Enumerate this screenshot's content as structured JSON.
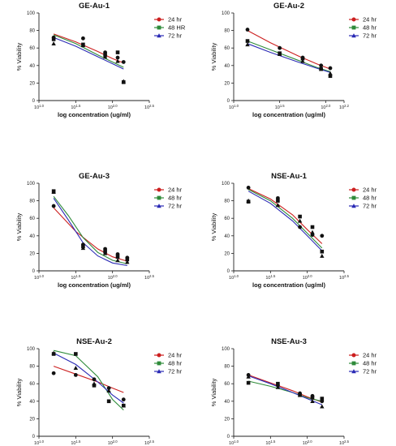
{
  "chart_data": [
    {
      "type": "scatter",
      "title": "GE-Au-1",
      "xlabel": "log concentration (ug/ml)",
      "ylabel": "% Viability",
      "xscale": "log",
      "xlim": [
        1.0,
        2.5
      ],
      "xticks": [
        1.0,
        1.5,
        2.0,
        2.5
      ],
      "xtick_labels": [
        "10^1.0",
        "10^1.5",
        "10^2.0",
        "10^2.5"
      ],
      "ylim": [
        0,
        100
      ],
      "yticks": [
        0,
        20,
        40,
        60,
        80,
        100
      ],
      "legend_position": "top-right",
      "series": [
        {
          "name": "24 hr",
          "color": "#cc1f1f",
          "marker": "circle",
          "x": [
            1.2,
            1.6,
            1.9,
            2.07,
            2.15
          ],
          "y": [
            72,
            71,
            55,
            49,
            44
          ],
          "fit": [
            [
              1.2,
              76
            ],
            [
              1.5,
              67
            ],
            [
              1.8,
              56
            ],
            [
              2.0,
              48
            ],
            [
              2.15,
              43
            ]
          ]
        },
        {
          "name": "48 HR",
          "color": "#2e8b3a",
          "marker": "square",
          "x": [
            1.2,
            1.6,
            1.9,
            2.07,
            2.15
          ],
          "y": [
            70,
            64,
            52,
            55,
            21
          ],
          "fit": [
            [
              1.2,
              75
            ],
            [
              1.5,
              65
            ],
            [
              1.8,
              52
            ],
            [
              2.0,
              44
            ],
            [
              2.15,
              38
            ]
          ]
        },
        {
          "name": "72 hr",
          "color": "#2a2ab5",
          "marker": "triangle",
          "x": [
            1.2,
            1.6,
            1.9,
            2.07,
            2.15
          ],
          "y": [
            65,
            63,
            50,
            45,
            22
          ],
          "fit": [
            [
              1.2,
              72
            ],
            [
              1.5,
              62
            ],
            [
              1.8,
              50
            ],
            [
              2.0,
              42
            ],
            [
              2.15,
              36
            ]
          ]
        }
      ]
    },
    {
      "type": "scatter",
      "title": "GE-Au-2",
      "xlabel": "log concentration (ug/ml)",
      "ylabel": "% Viability",
      "xscale": "log",
      "xlim": [
        1.0,
        2.2
      ],
      "xticks": [
        1.0,
        1.5,
        2.0,
        2.2
      ],
      "xtick_labels": [
        "10^1.0",
        "10^1.5",
        "10^2.0",
        "10^2.2"
      ],
      "ylim": [
        0,
        100
      ],
      "yticks": [
        0,
        20,
        40,
        60,
        80,
        100
      ],
      "legend_position": "top-right",
      "series": [
        {
          "name": "24 hr",
          "color": "#cc1f1f",
          "marker": "circle",
          "x": [
            1.15,
            1.5,
            1.75,
            1.95,
            2.05
          ],
          "y": [
            81,
            60,
            49,
            40,
            37
          ],
          "fit": [
            [
              1.15,
              80
            ],
            [
              1.4,
              66
            ],
            [
              1.7,
              51
            ],
            [
              1.9,
              42
            ],
            [
              2.05,
              36
            ]
          ]
        },
        {
          "name": "48 hr",
          "color": "#2e8b3a",
          "marker": "square",
          "x": [
            1.15,
            1.5,
            1.75,
            1.95,
            2.05
          ],
          "y": [
            68,
            54,
            48,
            36,
            28
          ],
          "fit": [
            [
              1.15,
              68
            ],
            [
              1.4,
              58
            ],
            [
              1.7,
              46
            ],
            [
              1.9,
              38
            ],
            [
              2.05,
              33
            ]
          ]
        },
        {
          "name": "72 hr",
          "color": "#2a2ab5",
          "marker": "triangle",
          "x": [
            1.15,
            1.5,
            1.75,
            1.95,
            2.05
          ],
          "y": [
            64,
            53,
            45,
            36,
            31
          ],
          "fit": [
            [
              1.15,
              65
            ],
            [
              1.4,
              55
            ],
            [
              1.7,
              44
            ],
            [
              1.9,
              37
            ],
            [
              2.05,
              32
            ]
          ]
        }
      ]
    },
    {
      "type": "scatter",
      "title": "GE-Au-3",
      "xlabel": "log concentration (ug/ml)",
      "ylabel": "% Viability",
      "xscale": "log",
      "xlim": [
        1.0,
        2.5
      ],
      "xticks": [
        1.0,
        1.5,
        2.0,
        2.5
      ],
      "xtick_labels": [
        "10^1.0",
        "10^1.5",
        "10^2.0",
        "10^2.5"
      ],
      "ylim": [
        0,
        100
      ],
      "yticks": [
        0,
        20,
        40,
        60,
        80,
        100
      ],
      "legend_position": "top-right",
      "series": [
        {
          "name": "24 hr",
          "color": "#cc1f1f",
          "marker": "circle",
          "x": [
            1.2,
            1.6,
            1.9,
            2.07,
            2.2
          ],
          "y": [
            74,
            30,
            25,
            19,
            15
          ],
          "fit": [
            [
              1.2,
              72
            ],
            [
              1.5,
              45
            ],
            [
              1.8,
              25
            ],
            [
              2.0,
              16
            ],
            [
              2.2,
              11
            ]
          ]
        },
        {
          "name": "48 hr",
          "color": "#2e8b3a",
          "marker": "square",
          "x": [
            1.2,
            1.6,
            1.9,
            2.07,
            2.2
          ],
          "y": [
            91,
            28,
            22,
            16,
            13
          ],
          "fit": [
            [
              1.2,
              85
            ],
            [
              1.4,
              63
            ],
            [
              1.6,
              38
            ],
            [
              1.8,
              21
            ],
            [
              2.0,
              12
            ],
            [
              2.2,
              8
            ]
          ]
        },
        {
          "name": "72 hr",
          "color": "#2a2ab5",
          "marker": "triangle",
          "x": [
            1.2,
            1.6,
            1.9,
            2.07,
            2.2
          ],
          "y": [
            90,
            26,
            20,
            12,
            10
          ],
          "fit": [
            [
              1.2,
              83
            ],
            [
              1.4,
              58
            ],
            [
              1.6,
              32
            ],
            [
              1.8,
              17
            ],
            [
              2.0,
              9
            ],
            [
              2.2,
              6
            ]
          ]
        }
      ]
    },
    {
      "type": "scatter",
      "title": "NSE-Au-1",
      "xlabel": "log concentration (ug/ml)",
      "ylabel": "% Viability",
      "xscale": "log",
      "xlim": [
        1.0,
        2.5
      ],
      "xticks": [
        1.0,
        1.5,
        2.0,
        2.5
      ],
      "xtick_labels": [
        "10^1.0",
        "10^1.5",
        "10^2.0",
        "10^2.5"
      ],
      "ylim": [
        0,
        100
      ],
      "yticks": [
        0,
        20,
        40,
        60,
        80,
        100
      ],
      "legend_position": "top-right",
      "series": [
        {
          "name": "24 hr",
          "color": "#cc1f1f",
          "marker": "circle",
          "x": [
            1.2,
            1.6,
            1.9,
            2.07,
            2.2
          ],
          "y": [
            95,
            83,
            50,
            41,
            40
          ],
          "fit": [
            [
              1.2,
              94
            ],
            [
              1.5,
              82
            ],
            [
              1.8,
              64
            ],
            [
              2.0,
              47
            ],
            [
              2.2,
              31
            ]
          ]
        },
        {
          "name": "48 hr",
          "color": "#2e8b3a",
          "marker": "square",
          "x": [
            1.2,
            1.6,
            1.9,
            2.07,
            2.2
          ],
          "y": [
            79,
            80,
            62,
            50,
            22
          ],
          "fit": [
            [
              1.2,
              93
            ],
            [
              1.5,
              80
            ],
            [
              1.8,
              60
            ],
            [
              2.0,
              43
            ],
            [
              2.2,
              26
            ]
          ]
        },
        {
          "name": "72 hr",
          "color": "#2a2ab5",
          "marker": "triangle",
          "x": [
            1.2,
            1.6,
            1.9,
            2.07,
            2.2
          ],
          "y": [
            80,
            75,
            57,
            44,
            17
          ],
          "fit": [
            [
              1.2,
              91
            ],
            [
              1.5,
              77
            ],
            [
              1.8,
              57
            ],
            [
              2.0,
              40
            ],
            [
              2.2,
              23
            ]
          ]
        }
      ]
    },
    {
      "type": "scatter",
      "title": "NSE-Au-2",
      "xlabel": "log concentration (ug/ml)",
      "ylabel": "% Viability",
      "xscale": "log",
      "xlim": [
        1.0,
        2.5
      ],
      "xticks": [
        1.0,
        1.5,
        2.0,
        2.5
      ],
      "xtick_labels": [
        "10^1.0",
        "10^1.5",
        "10^2.0",
        "10^2.5"
      ],
      "ylim": [
        0,
        100
      ],
      "yticks": [
        0,
        20,
        40,
        60,
        80,
        100
      ],
      "legend_position": "top-right",
      "series": [
        {
          "name": "24 hr",
          "color": "#cc1f1f",
          "marker": "circle",
          "x": [
            1.2,
            1.5,
            1.75,
            1.95,
            2.15
          ],
          "y": [
            72,
            70,
            65,
            55,
            42
          ],
          "fit": [
            [
              1.2,
              80
            ],
            [
              1.5,
              71
            ],
            [
              1.8,
              62
            ],
            [
              2.0,
              55
            ],
            [
              2.15,
              50
            ]
          ]
        },
        {
          "name": "48 hr",
          "color": "#2e8b3a",
          "marker": "square",
          "x": [
            1.2,
            1.5,
            1.75,
            1.95,
            2.15
          ],
          "y": [
            94,
            94,
            58,
            40,
            35
          ],
          "fit": [
            [
              1.2,
              98
            ],
            [
              1.5,
              92
            ],
            [
              1.8,
              68
            ],
            [
              2.0,
              42
            ],
            [
              2.15,
              30
            ]
          ]
        },
        {
          "name": "72 hr",
          "color": "#2a2ab5",
          "marker": "triangle",
          "x": [
            1.2,
            1.5,
            1.75,
            1.95,
            2.15
          ],
          "y": [
            95,
            78,
            60,
            52,
            35
          ],
          "fit": [
            [
              1.2,
              95
            ],
            [
              1.5,
              82
            ],
            [
              1.8,
              62
            ],
            [
              2.0,
              47
            ],
            [
              2.15,
              38
            ]
          ]
        }
      ]
    },
    {
      "type": "scatter",
      "title": "NSE-Au-3",
      "xlabel": "log concentration (ug/ml)",
      "ylabel": "% Viability",
      "xscale": "log",
      "xlim": [
        1.0,
        2.5
      ],
      "xticks": [
        1.0,
        1.5,
        2.0,
        2.5
      ],
      "xtick_labels": [
        "10^1.0",
        "10^1.5",
        "10^2.0",
        "10^2.5"
      ],
      "ylim": [
        0,
        100
      ],
      "yticks": [
        0,
        20,
        40,
        60,
        80,
        100
      ],
      "legend_position": "top-right",
      "series": [
        {
          "name": "24 hr",
          "color": "#cc1f1f",
          "marker": "circle",
          "x": [
            1.2,
            1.6,
            1.9,
            2.07,
            2.2
          ],
          "y": [
            70,
            58,
            49,
            46,
            40
          ],
          "fit": [
            [
              1.2,
              70
            ],
            [
              1.5,
              61
            ],
            [
              1.8,
              52
            ],
            [
              2.0,
              45
            ],
            [
              2.2,
              39
            ]
          ]
        },
        {
          "name": "48 hr",
          "color": "#2e8b3a",
          "marker": "square",
          "x": [
            1.2,
            1.6,
            1.9,
            2.07,
            2.2
          ],
          "y": [
            61,
            60,
            47,
            44,
            43
          ],
          "fit": [
            [
              1.2,
              63
            ],
            [
              1.5,
              57
            ],
            [
              1.8,
              50
            ],
            [
              2.0,
              44
            ],
            [
              2.2,
              40
            ]
          ]
        },
        {
          "name": "72 hr",
          "color": "#2a2ab5",
          "marker": "triangle",
          "x": [
            1.2,
            1.6,
            1.9,
            2.07,
            2.2
          ],
          "y": [
            68,
            56,
            47,
            40,
            34
          ],
          "fit": [
            [
              1.2,
              69
            ],
            [
              1.5,
              60
            ],
            [
              1.8,
              50
            ],
            [
              2.0,
              43
            ],
            [
              2.2,
              36
            ]
          ]
        }
      ]
    }
  ]
}
